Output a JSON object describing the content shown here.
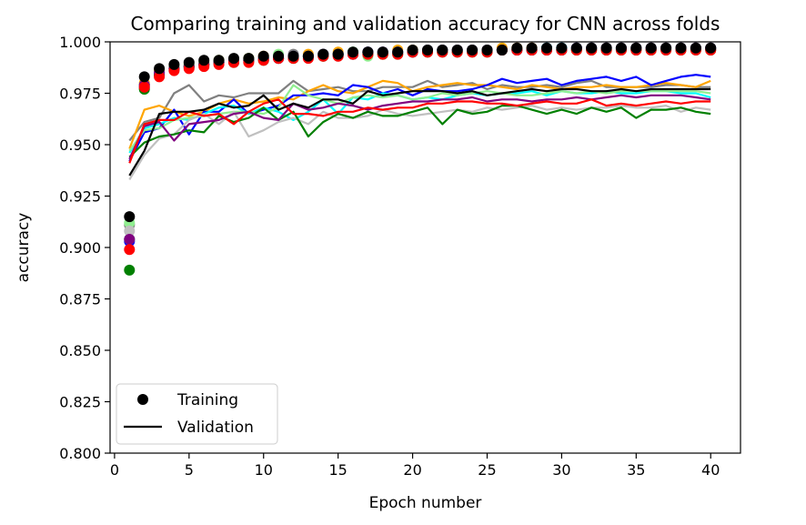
{
  "chart_data": {
    "type": "line",
    "title": "Comparing training and validation accuracy for CNN across folds",
    "xlabel": "Epoch number",
    "ylabel": "accuracy",
    "xlim": [
      -0.3,
      42
    ],
    "ylim": [
      0.8,
      1.0
    ],
    "xticks": [
      0,
      5,
      10,
      15,
      20,
      25,
      30,
      35,
      40
    ],
    "yticks": [
      0.8,
      0.825,
      0.85,
      0.875,
      0.9,
      0.925,
      0.95,
      0.975,
      1.0
    ],
    "ytick_labels": [
      "0.800",
      "0.825",
      "0.850",
      "0.875",
      "0.900",
      "0.925",
      "0.950",
      "0.975",
      "1.000"
    ],
    "grid": false,
    "legend": {
      "placement": "lower-left",
      "entries": [
        {
          "label": "Training",
          "marker": "circle",
          "color": "#000000"
        },
        {
          "label": "Validation",
          "marker": "line",
          "color": "#000000"
        }
      ]
    },
    "x": [
      1,
      2,
      3,
      4,
      5,
      6,
      7,
      8,
      9,
      10,
      11,
      12,
      13,
      14,
      15,
      16,
      17,
      18,
      19,
      20,
      21,
      22,
      23,
      24,
      25,
      26,
      27,
      28,
      29,
      30,
      31,
      32,
      33,
      34,
      35,
      36,
      37,
      38,
      39,
      40
    ],
    "series": [
      {
        "color": "#808080",
        "training": [
          0.911,
          0.979,
          0.985,
          0.987,
          0.988,
          0.989,
          0.99,
          0.991,
          0.991,
          0.992,
          0.992,
          0.994,
          0.993,
          0.993,
          0.993,
          0.994,
          0.995,
          0.994,
          0.995,
          0.995,
          0.995,
          0.996,
          0.995,
          0.996,
          0.996,
          0.996,
          0.996,
          0.997,
          0.996,
          0.996,
          0.996,
          0.997,
          0.996,
          0.997,
          0.996,
          0.996,
          0.997,
          0.997,
          0.997,
          0.997
        ],
        "validation": [
          0.952,
          0.961,
          0.963,
          0.975,
          0.979,
          0.971,
          0.974,
          0.973,
          0.975,
          0.975,
          0.975,
          0.981,
          0.976,
          0.977,
          0.978,
          0.976,
          0.976,
          0.978,
          0.978,
          0.978,
          0.981,
          0.978,
          0.979,
          0.98,
          0.977,
          0.979,
          0.978,
          0.978,
          0.979,
          0.978,
          0.98,
          0.981,
          0.978,
          0.978,
          0.978,
          0.978,
          0.979,
          0.979,
          0.978,
          0.978
        ]
      },
      {
        "color": "#ffa500",
        "training": [
          0.904,
          0.98,
          0.986,
          0.988,
          0.989,
          0.99,
          0.991,
          0.991,
          0.992,
          0.993,
          0.993,
          0.993,
          0.994,
          0.994,
          0.995,
          0.995,
          0.995,
          0.995,
          0.996,
          0.996,
          0.996,
          0.996,
          0.996,
          0.996,
          0.996,
          0.997,
          0.997,
          0.997,
          0.997,
          0.997,
          0.997,
          0.997,
          0.997,
          0.997,
          0.997,
          0.997,
          0.997,
          0.997,
          0.997,
          0.997
        ],
        "validation": [
          0.948,
          0.967,
          0.969,
          0.966,
          0.964,
          0.966,
          0.97,
          0.972,
          0.97,
          0.971,
          0.973,
          0.972,
          0.976,
          0.979,
          0.976,
          0.975,
          0.978,
          0.981,
          0.98,
          0.976,
          0.978,
          0.979,
          0.98,
          0.979,
          0.979,
          0.978,
          0.977,
          0.979,
          0.978,
          0.977,
          0.978,
          0.978,
          0.979,
          0.978,
          0.978,
          0.979,
          0.98,
          0.979,
          0.978,
          0.981
        ]
      },
      {
        "color": "#0000ff",
        "training": [
          0.903,
          0.978,
          0.984,
          0.987,
          0.988,
          0.989,
          0.99,
          0.991,
          0.991,
          0.992,
          0.992,
          0.993,
          0.993,
          0.994,
          0.994,
          0.994,
          0.995,
          0.995,
          0.995,
          0.995,
          0.996,
          0.996,
          0.996,
          0.996,
          0.996,
          0.996,
          0.996,
          0.996,
          0.997,
          0.997,
          0.997,
          0.997,
          0.997,
          0.997,
          0.997,
          0.997,
          0.997,
          0.997,
          0.997,
          0.997
        ],
        "validation": [
          0.942,
          0.956,
          0.958,
          0.967,
          0.955,
          0.966,
          0.966,
          0.972,
          0.965,
          0.967,
          0.969,
          0.974,
          0.974,
          0.975,
          0.974,
          0.979,
          0.978,
          0.975,
          0.977,
          0.974,
          0.977,
          0.976,
          0.976,
          0.977,
          0.979,
          0.982,
          0.98,
          0.981,
          0.982,
          0.979,
          0.981,
          0.982,
          0.983,
          0.981,
          0.983,
          0.979,
          0.981,
          0.983,
          0.984,
          0.983
        ]
      },
      {
        "color": "#00ffff",
        "training": [
          0.904,
          0.979,
          0.985,
          0.987,
          0.988,
          0.989,
          0.99,
          0.991,
          0.991,
          0.992,
          0.993,
          0.993,
          0.993,
          0.994,
          0.994,
          0.995,
          0.995,
          0.995,
          0.995,
          0.995,
          0.996,
          0.996,
          0.996,
          0.996,
          0.996,
          0.996,
          0.996,
          0.996,
          0.997,
          0.997,
          0.997,
          0.997,
          0.997,
          0.997,
          0.997,
          0.997,
          0.997,
          0.997,
          0.997,
          0.997
        ],
        "validation": [
          0.946,
          0.958,
          0.96,
          0.963,
          0.962,
          0.965,
          0.968,
          0.969,
          0.965,
          0.968,
          0.966,
          0.962,
          0.966,
          0.972,
          0.965,
          0.973,
          0.972,
          0.975,
          0.974,
          0.972,
          0.973,
          0.972,
          0.974,
          0.975,
          0.974,
          0.975,
          0.975,
          0.976,
          0.974,
          0.976,
          0.975,
          0.975,
          0.976,
          0.975,
          0.975,
          0.976,
          0.976,
          0.975,
          0.975,
          0.973
        ]
      },
      {
        "color": "#90ee90",
        "training": [
          0.912,
          0.977,
          0.985,
          0.988,
          0.989,
          0.99,
          0.991,
          0.991,
          0.992,
          0.992,
          0.994,
          0.993,
          0.993,
          0.994,
          0.994,
          0.995,
          0.993,
          0.994,
          0.995,
          0.995,
          0.996,
          0.996,
          0.996,
          0.996,
          0.996,
          0.996,
          0.996,
          0.996,
          0.996,
          0.996,
          0.996,
          0.997,
          0.997,
          0.997,
          0.997,
          0.997,
          0.997,
          0.997,
          0.997,
          0.997
        ],
        "validation": [
          0.947,
          0.957,
          0.958,
          0.962,
          0.963,
          0.964,
          0.965,
          0.966,
          0.966,
          0.965,
          0.968,
          0.979,
          0.974,
          0.972,
          0.97,
          0.973,
          0.974,
          0.973,
          0.974,
          0.972,
          0.973,
          0.975,
          0.974,
          0.975,
          0.976,
          0.975,
          0.974,
          0.974,
          0.975,
          0.976,
          0.975,
          0.976,
          0.975,
          0.976,
          0.976,
          0.976,
          0.976,
          0.976,
          0.976,
          0.975
        ]
      },
      {
        "color": "#c0c0c0",
        "training": [
          0.908,
          0.979,
          0.985,
          0.987,
          0.988,
          0.989,
          0.99,
          0.991,
          0.991,
          0.991,
          0.992,
          0.993,
          0.993,
          0.993,
          0.994,
          0.994,
          0.994,
          0.995,
          0.995,
          0.995,
          0.995,
          0.995,
          0.996,
          0.996,
          0.996,
          0.996,
          0.996,
          0.996,
          0.996,
          0.996,
          0.996,
          0.996,
          0.997,
          0.997,
          0.997,
          0.997,
          0.997,
          0.997,
          0.997,
          0.997
        ],
        "validation": [
          0.933,
          0.945,
          0.953,
          0.955,
          0.962,
          0.965,
          0.96,
          0.966,
          0.954,
          0.957,
          0.961,
          0.963,
          0.96,
          0.966,
          0.963,
          0.963,
          0.964,
          0.967,
          0.965,
          0.964,
          0.965,
          0.966,
          0.967,
          0.966,
          0.968,
          0.967,
          0.968,
          0.969,
          0.967,
          0.968,
          0.967,
          0.968,
          0.968,
          0.969,
          0.968,
          0.968,
          0.969,
          0.966,
          0.968,
          0.967
        ]
      },
      {
        "color": "#008000",
        "training": [
          0.889,
          0.977,
          0.984,
          0.987,
          0.988,
          0.989,
          0.99,
          0.99,
          0.991,
          0.991,
          0.992,
          0.992,
          0.993,
          0.993,
          0.994,
          0.994,
          0.994,
          0.994,
          0.994,
          0.995,
          0.995,
          0.995,
          0.995,
          0.995,
          0.995,
          0.996,
          0.996,
          0.996,
          0.996,
          0.996,
          0.996,
          0.996,
          0.996,
          0.996,
          0.996,
          0.996,
          0.996,
          0.996,
          0.996,
          0.996
        ],
        "validation": [
          0.944,
          0.951,
          0.954,
          0.955,
          0.957,
          0.956,
          0.964,
          0.961,
          0.963,
          0.968,
          0.962,
          0.966,
          0.954,
          0.961,
          0.965,
          0.963,
          0.966,
          0.964,
          0.964,
          0.966,
          0.968,
          0.96,
          0.967,
          0.965,
          0.966,
          0.969,
          0.969,
          0.967,
          0.965,
          0.967,
          0.965,
          0.968,
          0.966,
          0.968,
          0.963,
          0.967,
          0.967,
          0.968,
          0.966,
          0.965
        ]
      },
      {
        "color": "#800080",
        "training": [
          0.904,
          0.979,
          0.985,
          0.987,
          0.988,
          0.989,
          0.99,
          0.991,
          0.991,
          0.992,
          0.992,
          0.993,
          0.993,
          0.994,
          0.994,
          0.994,
          0.995,
          0.995,
          0.995,
          0.995,
          0.996,
          0.996,
          0.996,
          0.996,
          0.996,
          0.996,
          0.996,
          0.996,
          0.996,
          0.996,
          0.997,
          0.997,
          0.997,
          0.997,
          0.997,
          0.997,
          0.997,
          0.997,
          0.997,
          0.997
        ],
        "validation": [
          0.943,
          0.959,
          0.961,
          0.952,
          0.96,
          0.961,
          0.962,
          0.965,
          0.966,
          0.963,
          0.962,
          0.97,
          0.967,
          0.968,
          0.97,
          0.969,
          0.967,
          0.969,
          0.97,
          0.971,
          0.971,
          0.972,
          0.972,
          0.973,
          0.971,
          0.972,
          0.972,
          0.971,
          0.972,
          0.972,
          0.973,
          0.972,
          0.973,
          0.974,
          0.973,
          0.974,
          0.974,
          0.974,
          0.973,
          0.972
        ]
      },
      {
        "color": "#ff0000",
        "training": [
          0.899,
          0.978,
          0.983,
          0.986,
          0.987,
          0.988,
          0.989,
          0.99,
          0.99,
          0.991,
          0.992,
          0.992,
          0.992,
          0.993,
          0.993,
          0.994,
          0.994,
          0.994,
          0.994,
          0.995,
          0.995,
          0.995,
          0.995,
          0.995,
          0.995,
          0.996,
          0.996,
          0.996,
          0.996,
          0.996,
          0.996,
          0.996,
          0.996,
          0.996,
          0.996,
          0.996,
          0.996,
          0.996,
          0.996,
          0.996
        ],
        "validation": [
          0.941,
          0.96,
          0.962,
          0.962,
          0.966,
          0.964,
          0.965,
          0.96,
          0.966,
          0.97,
          0.972,
          0.965,
          0.965,
          0.964,
          0.966,
          0.966,
          0.968,
          0.967,
          0.968,
          0.968,
          0.97,
          0.97,
          0.971,
          0.971,
          0.97,
          0.97,
          0.969,
          0.97,
          0.971,
          0.97,
          0.97,
          0.972,
          0.969,
          0.97,
          0.969,
          0.97,
          0.971,
          0.97,
          0.971,
          0.971
        ]
      },
      {
        "color": "#000000",
        "training": [
          0.915,
          0.983,
          0.987,
          0.989,
          0.99,
          0.991,
          0.991,
          0.992,
          0.992,
          0.993,
          0.993,
          0.993,
          0.993,
          0.994,
          0.994,
          0.995,
          0.995,
          0.995,
          0.995,
          0.996,
          0.996,
          0.996,
          0.996,
          0.996,
          0.996,
          0.996,
          0.997,
          0.997,
          0.997,
          0.997,
          0.997,
          0.997,
          0.997,
          0.997,
          0.997,
          0.997,
          0.997,
          0.997,
          0.997,
          0.997
        ],
        "validation": [
          0.935,
          0.947,
          0.965,
          0.966,
          0.966,
          0.967,
          0.97,
          0.968,
          0.969,
          0.974,
          0.967,
          0.97,
          0.968,
          0.972,
          0.972,
          0.97,
          0.976,
          0.974,
          0.975,
          0.976,
          0.976,
          0.976,
          0.975,
          0.976,
          0.974,
          0.975,
          0.976,
          0.977,
          0.976,
          0.977,
          0.977,
          0.976,
          0.976,
          0.977,
          0.976,
          0.977,
          0.977,
          0.977,
          0.977,
          0.977
        ]
      }
    ]
  }
}
